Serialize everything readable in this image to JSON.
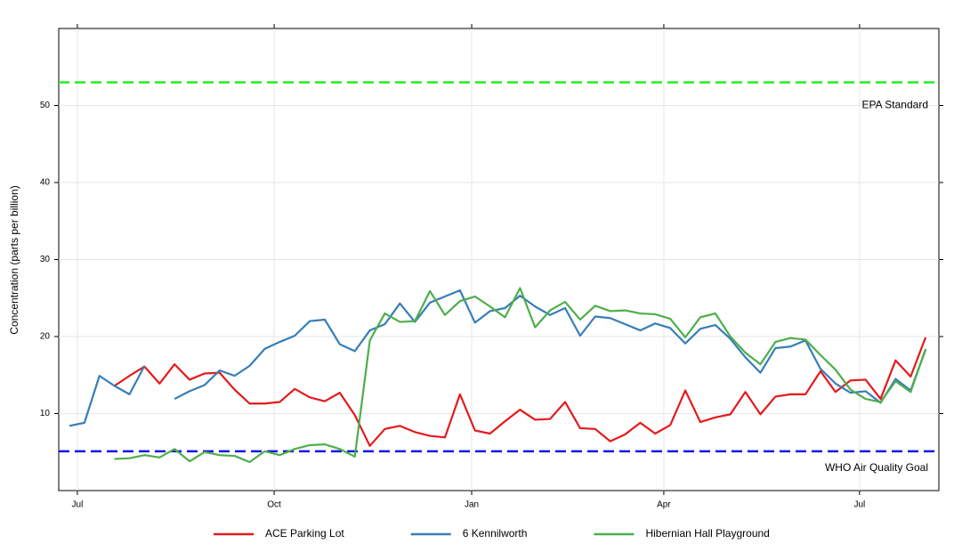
{
  "chart_data": {
    "type": "line",
    "y_label": "Concentration (parts per billion)",
    "x": [
      0,
      1,
      2,
      3,
      4,
      5,
      6,
      7,
      8,
      9,
      10,
      11,
      12,
      13,
      14,
      15,
      16,
      17,
      18,
      19,
      20,
      21,
      22,
      23,
      24,
      25,
      26,
      27,
      28,
      29,
      30,
      31,
      32,
      33,
      34,
      35,
      36,
      37,
      38,
      39,
      40,
      41,
      42,
      43,
      44,
      45,
      46,
      47,
      48,
      49,
      50,
      51,
      52,
      53,
      54,
      55,
      56,
      57
    ],
    "xlim": [
      -0.71,
      57.88
    ],
    "xticks": [
      {
        "value": 0.53,
        "label": "Jul"
      },
      {
        "value": 13.63,
        "label": "Oct"
      },
      {
        "value": 26.78,
        "label": "Jan"
      },
      {
        "value": 39.57,
        "label": "Apr"
      },
      {
        "value": 52.6,
        "label": "Jul"
      }
    ],
    "ylim": [
      0,
      60
    ],
    "yticks": [
      10,
      20,
      30,
      40,
      50
    ],
    "grid": true,
    "legend": "bottom",
    "series": [
      {
        "name": "ACE Parking Lot",
        "color": "#e41a1c",
        "values": [
          null,
          null,
          null,
          13.6,
          14.9,
          16.1,
          13.9,
          16.4,
          14.4,
          15.2,
          15.3,
          13.1,
          11.3,
          11.3,
          11.5,
          13.2,
          12.1,
          11.6,
          12.7,
          9.8,
          5.8,
          8.0,
          8.4,
          7.6,
          7.1,
          6.9,
          12.5,
          7.8,
          7.4,
          9.0,
          10.5,
          9.2,
          9.3,
          11.5,
          8.1,
          8.0,
          6.4,
          7.3,
          8.8,
          7.4,
          8.5,
          13.0,
          8.9,
          9.5,
          9.9,
          12.8,
          9.9,
          12.2,
          12.5,
          12.5,
          15.5,
          12.8,
          14.3,
          14.4,
          11.9,
          16.9,
          14.8,
          19.9
        ]
      },
      {
        "name": "6 Kennilworth",
        "color": "#377eb8",
        "values": [
          8.4,
          8.8,
          14.9,
          13.6,
          12.5,
          16.2,
          null,
          11.9,
          12.9,
          13.7,
          15.6,
          14.9,
          16.2,
          18.4,
          19.3,
          20.1,
          22.0,
          22.2,
          19.0,
          18.1,
          20.8,
          21.6,
          24.3,
          21.9,
          24.4,
          25.2,
          26.0,
          21.8,
          23.3,
          23.7,
          25.3,
          23.9,
          22.8,
          23.7,
          20.1,
          22.6,
          22.4,
          21.6,
          20.8,
          21.7,
          21.1,
          19.1,
          21.0,
          21.5,
          19.7,
          17.3,
          15.3,
          18.5,
          18.7,
          19.5,
          15.8,
          13.9,
          12.7,
          12.9,
          11.4,
          14.5,
          13.0,
          18.3
        ]
      },
      {
        "name": "Hibernian Hall Playground",
        "color": "#4daf4a",
        "values": [
          null,
          null,
          null,
          4.1,
          4.2,
          4.6,
          4.3,
          5.4,
          3.8,
          5.0,
          4.6,
          4.5,
          3.7,
          5.1,
          4.6,
          5.4,
          5.9,
          6.0,
          5.4,
          4.4,
          19.5,
          23.0,
          21.9,
          22.0,
          25.9,
          22.8,
          24.6,
          25.2,
          23.9,
          22.5,
          26.3,
          21.2,
          23.4,
          24.5,
          22.2,
          24.0,
          23.3,
          23.4,
          23.0,
          22.9,
          22.3,
          19.9,
          22.5,
          23.0,
          20.0,
          17.9,
          16.4,
          19.3,
          19.8,
          19.6,
          17.6,
          15.7,
          13.1,
          11.9,
          11.5,
          14.2,
          12.8,
          18.4
        ]
      }
    ],
    "reference_lines": [
      {
        "label": "EPA Standard",
        "value": 53,
        "color": "#22ee22"
      },
      {
        "label": "WHO Air Quality Goal",
        "value": 5.1,
        "color": "#1515e6"
      }
    ]
  }
}
